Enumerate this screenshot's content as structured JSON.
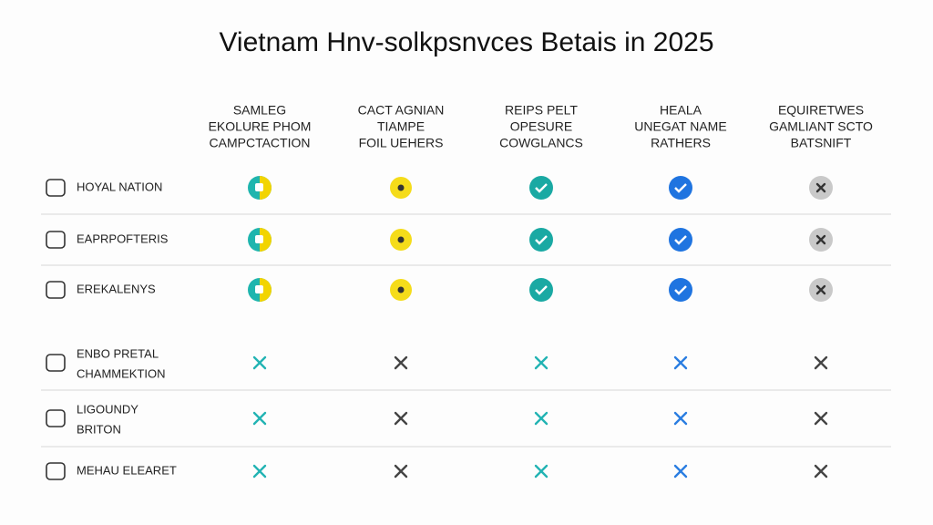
{
  "title": "Vietnam Hnv-solkpsnvces Betais in 2025",
  "columns": [
    [
      "SAMLEG",
      "EKOLURE PHOM",
      "CAMPCTACTION"
    ],
    [
      "CACT AGNIAN",
      "TIAMPE",
      "FOIL UEHERS"
    ],
    [
      "REIPS PELT",
      "OPESURE",
      "COWGLANCS"
    ],
    [
      "HEALA",
      "UNEGAT NAME",
      "RATHERS"
    ],
    [
      "EQUIRETWES",
      "GAMLIANT SCTO",
      "BATSNIFT"
    ]
  ],
  "rows": [
    {
      "label": [
        "HOYAL NATION"
      ],
      "cells": [
        "half",
        "dot",
        "check-teal",
        "check-blue",
        "x-gray"
      ]
    },
    {
      "label": [
        "EAPRPOFTERIS"
      ],
      "cells": [
        "half",
        "dot",
        "check-teal",
        "check-blue",
        "x-gray"
      ]
    },
    {
      "label": [
        "EREKALENYS"
      ],
      "cells": [
        "half",
        "dot",
        "check-teal",
        "check-blue",
        "x-gray"
      ]
    },
    {
      "label": [
        "ENBO PRETAL",
        "CHAMMEKTION"
      ],
      "cells": [
        "x-teal",
        "x-dark",
        "x-teal",
        "x-blue",
        "x-dark"
      ]
    },
    {
      "label": [
        "LIGOUNDY",
        "BRITON"
      ],
      "cells": [
        "x-teal",
        "x-dark",
        "x-teal",
        "x-blue",
        "x-dark"
      ]
    },
    {
      "label": [
        "MEHAU ELEARET"
      ],
      "cells": [
        "x-teal",
        "x-dark",
        "x-teal",
        "x-blue",
        "x-dark"
      ]
    }
  ]
}
